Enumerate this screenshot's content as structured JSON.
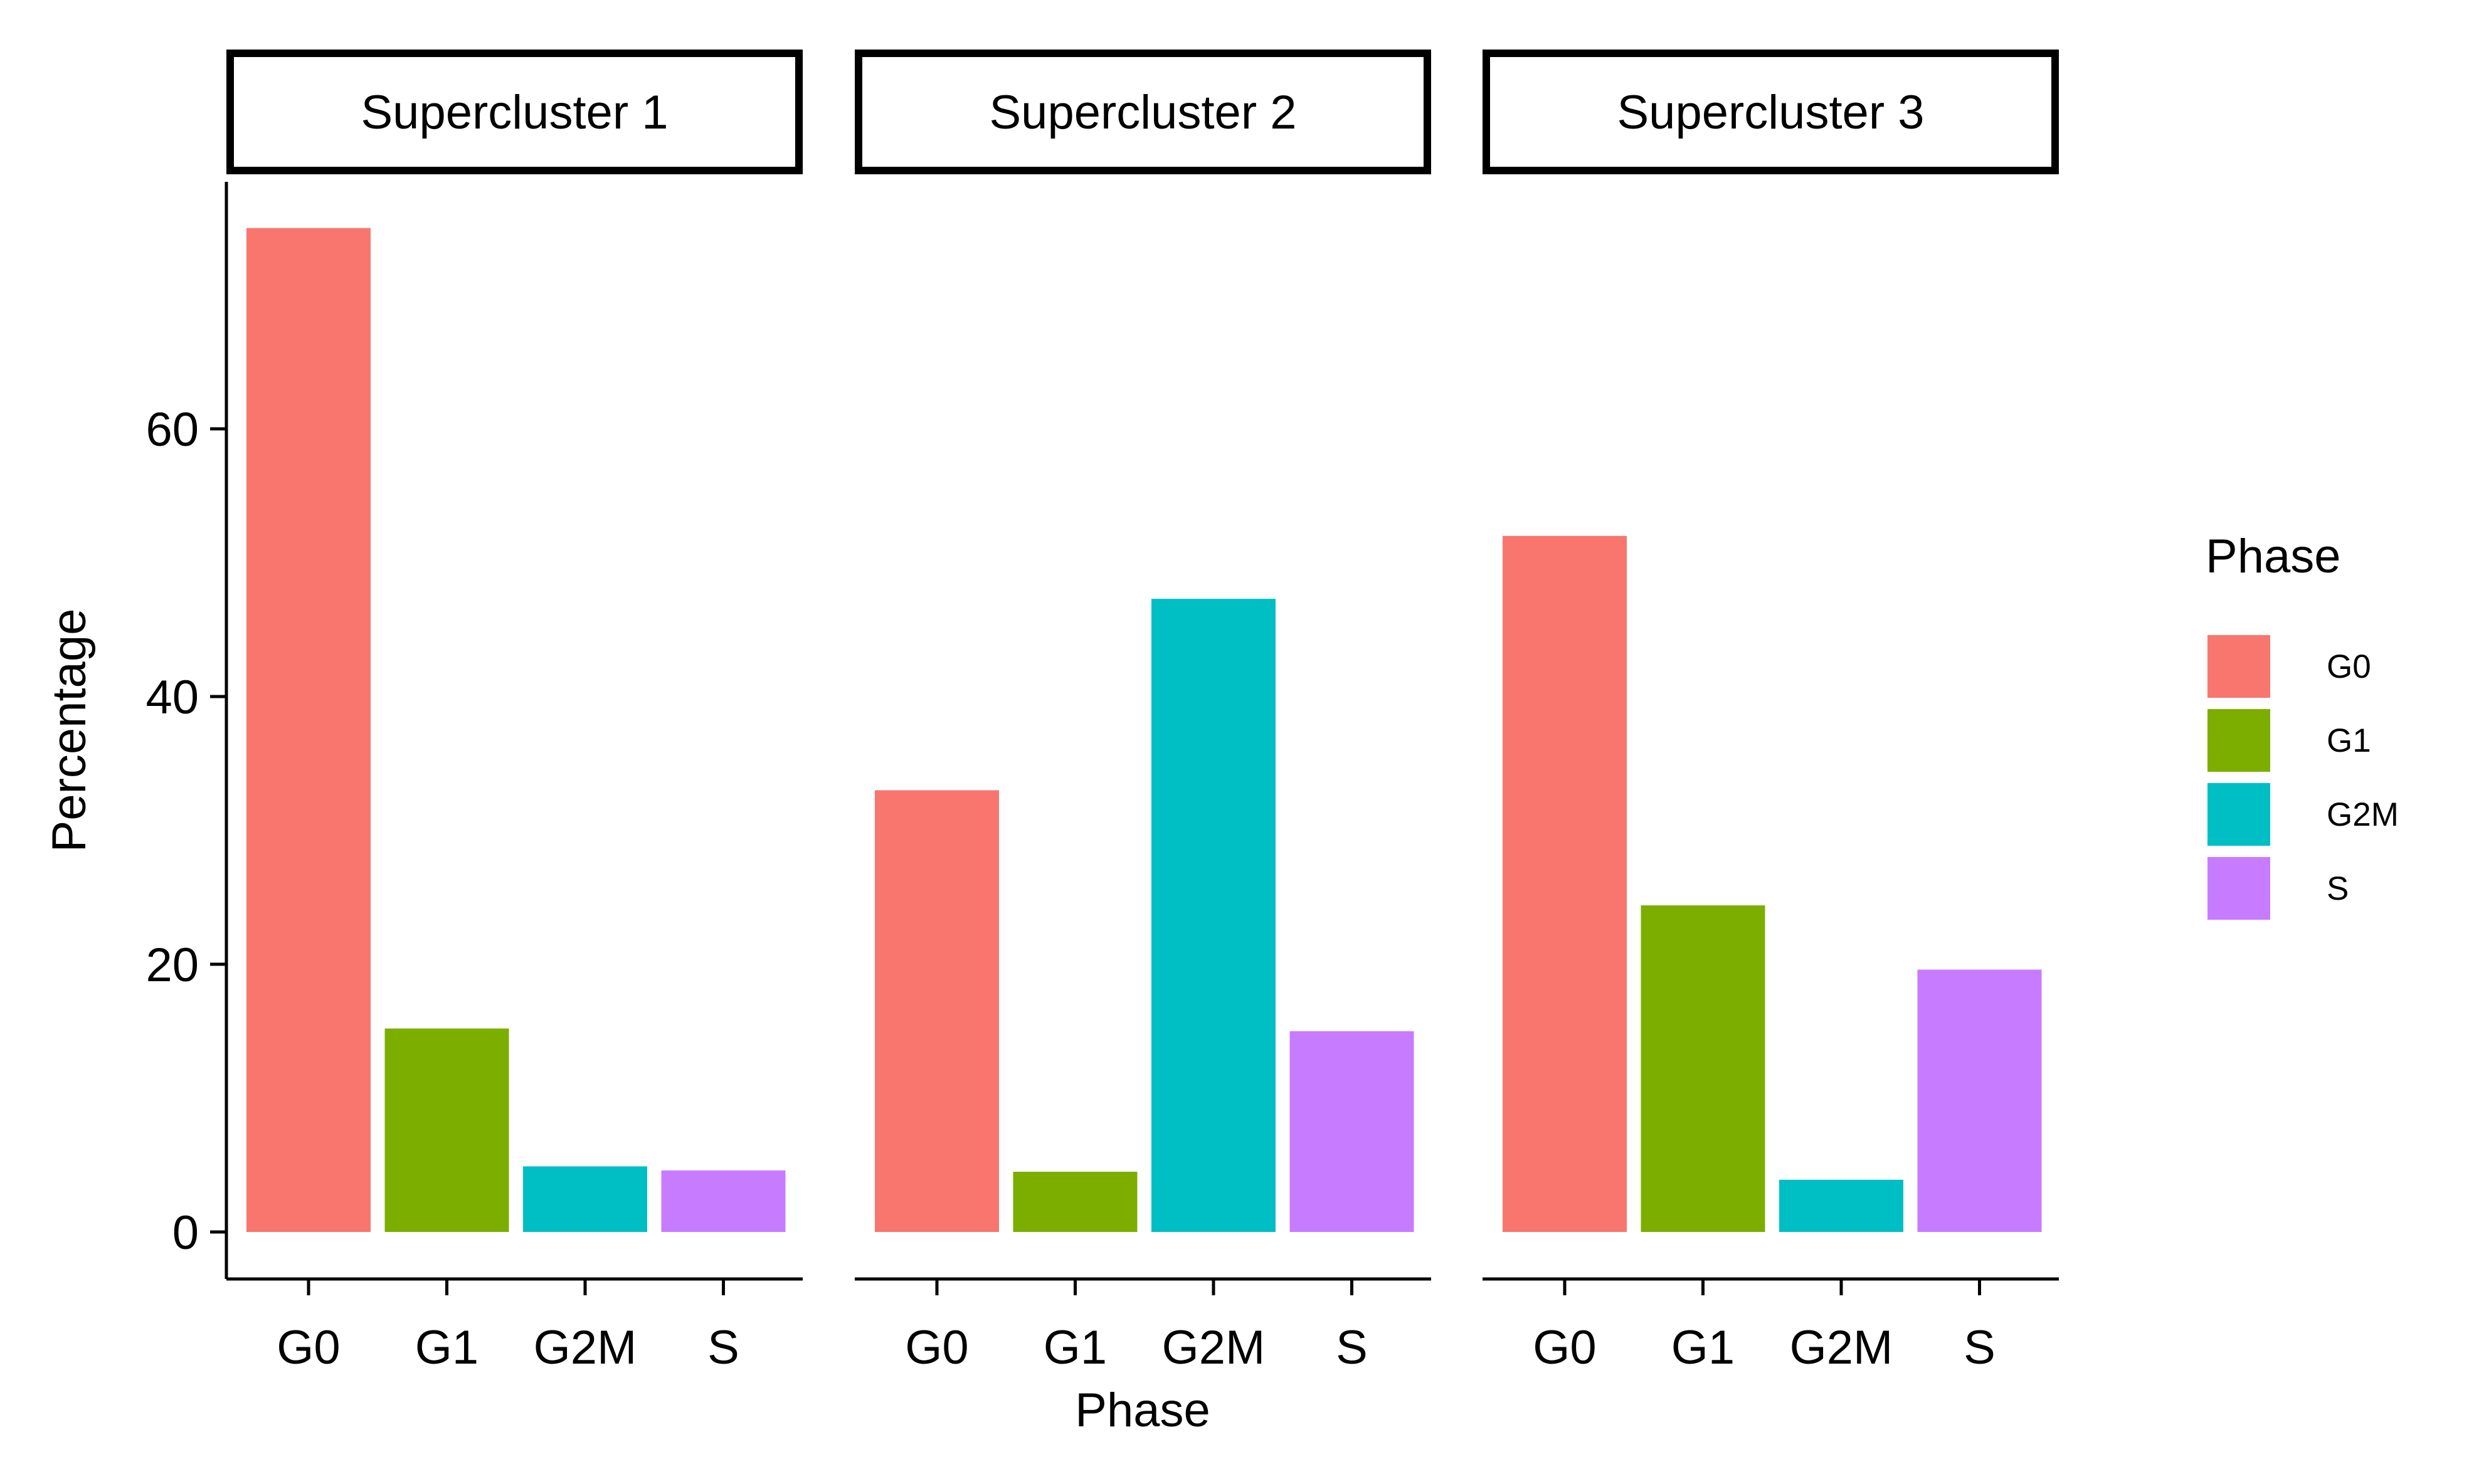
{
  "chart_data": {
    "type": "bar",
    "xlabel": "Phase",
    "ylabel": "Percentage",
    "ylim": [
      0,
      79
    ],
    "yticks": [
      0,
      20,
      40,
      60
    ],
    "grid": false,
    "legend": {
      "title": "Phase",
      "position": "right",
      "entries": [
        {
          "label": "G0",
          "color": "#F8766D"
        },
        {
          "label": "G1",
          "color": "#7CAE00"
        },
        {
          "label": "G2M",
          "color": "#00BFC4"
        },
        {
          "label": "S",
          "color": "#C77CFF"
        }
      ]
    },
    "categories": [
      "G0",
      "G1",
      "G2M",
      "S"
    ],
    "panels": [
      {
        "title": "Supercluster 1",
        "values": [
          75.0,
          15.2,
          4.9,
          4.6
        ]
      },
      {
        "title": "Supercluster 2",
        "values": [
          33.0,
          4.5,
          47.3,
          15.0
        ]
      },
      {
        "title": "Supercluster 3",
        "values": [
          52.0,
          24.4,
          3.9,
          19.6
        ]
      }
    ]
  }
}
